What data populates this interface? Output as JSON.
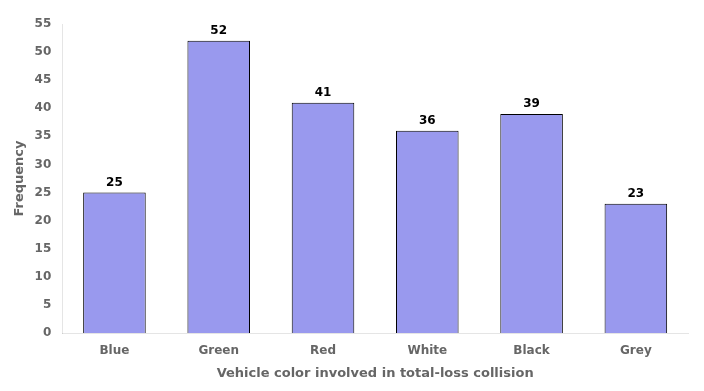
{
  "chart_data": {
    "type": "bar",
    "categories": [
      "Blue",
      "Green",
      "Red",
      "White",
      "Black",
      "Grey"
    ],
    "values": [
      25,
      52,
      41,
      36,
      39,
      23
    ],
    "color": "#9999EE",
    "xlabel": "Vehicle color involved in total-loss collision",
    "ylabel": "Frequency",
    "ylim": [
      0,
      55
    ],
    "yticks": [
      0,
      5,
      10,
      15,
      20,
      25,
      30,
      35,
      40,
      45,
      50,
      55
    ],
    "grid": false,
    "data_labels": true
  }
}
